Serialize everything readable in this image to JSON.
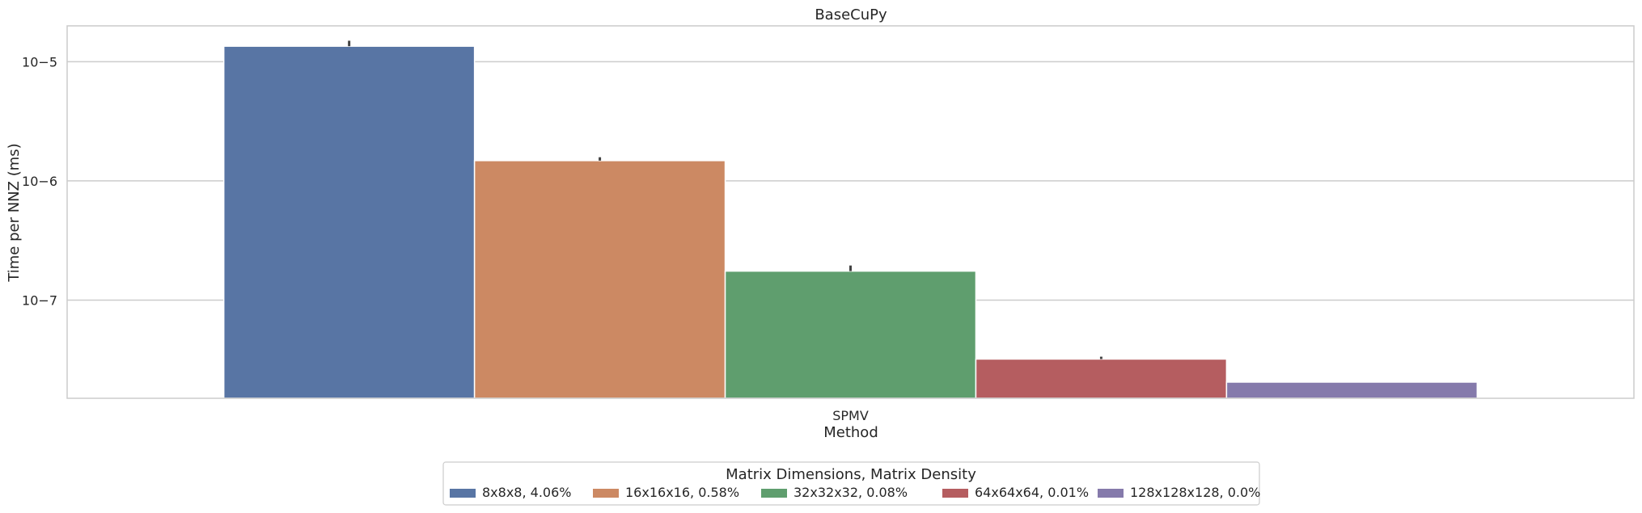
{
  "chart_data": {
    "type": "bar",
    "title": "BaseCuPy",
    "xlabel": "Method",
    "ylabel": "Time per NNZ (ms)",
    "yscale": "log",
    "ylim": [
      1.5e-08,
      2e-05
    ],
    "grid": true,
    "categories": [
      "SPMV"
    ],
    "yticks": [
      {
        "value": 1e-07,
        "label": "10−7"
      },
      {
        "value": 1e-06,
        "label": "10−6"
      },
      {
        "value": 1e-05,
        "label": "10−5"
      }
    ],
    "legend": {
      "title": "Matrix Dimensions, Matrix Density",
      "placement": "bottom-center"
    },
    "series": [
      {
        "name": "8x8x8, 4.06%",
        "color": "#5875a4",
        "values": [
          1.35e-05
        ],
        "error_high": [
          1.5e-05
        ]
      },
      {
        "name": "16x16x16, 0.58%",
        "color": "#cc8963",
        "values": [
          1.48e-06
        ],
        "error_high": [
          1.58e-06
        ]
      },
      {
        "name": "32x32x32, 0.08%",
        "color": "#5f9e6e",
        "values": [
          1.75e-07
        ],
        "error_high": [
          1.95e-07
        ]
      },
      {
        "name": "64x64x64, 0.01%",
        "color": "#b55d60",
        "values": [
          3.2e-08
        ],
        "error_high": [
          3.35e-08
        ]
      },
      {
        "name": "128x128x128, 0.0%",
        "color": "#857aab",
        "values": [
          2.05e-08
        ],
        "error_high": [
          2.05e-08
        ]
      }
    ]
  }
}
